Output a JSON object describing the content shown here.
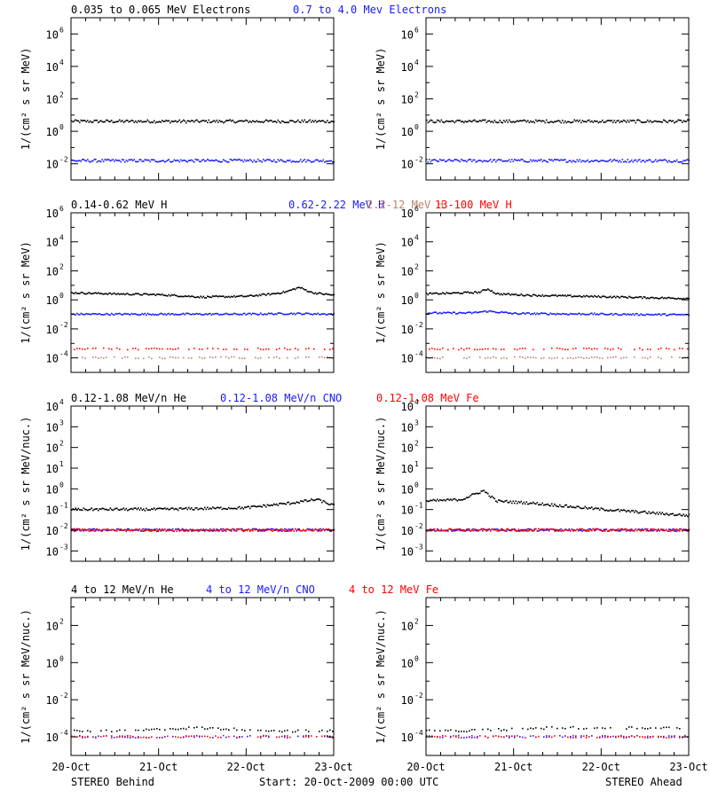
{
  "colors": {
    "black": "#000000",
    "blue": "#1a1aff",
    "tan": "#c08070",
    "red": "#ff0000"
  },
  "figure": {
    "footer_left": "STEREO Behind",
    "footer_center": "Start: 20-Oct-2009 00:00 UTC",
    "footer_right": "STEREO Ahead"
  },
  "chart_data": [
    {
      "type": "scatter",
      "panel": "electrons-behind",
      "column": "STEREO Behind",
      "title_segments": [
        {
          "text": "0.035 to 0.065 MeV Electrons",
          "color": "black"
        },
        {
          "text": "0.7 to 4.0 Mev Electrons",
          "color": "blue"
        }
      ],
      "ylabel": "1/(cm² s sr MeV)",
      "y_scale": "log",
      "ylim_exponent": [
        -3,
        7
      ],
      "y_tick_exponents": [
        -2,
        0,
        2,
        4,
        6
      ],
      "x_ticks": [
        "20-Oct",
        "21-Oct",
        "22-Oct",
        "23-Oct"
      ],
      "xlim_days": [
        0,
        3
      ],
      "series": [
        {
          "name": "0.035 to 0.065 MeV Electrons",
          "color": "black",
          "x_days": [
            0,
            0.5,
            1,
            1.5,
            2,
            2.5,
            3
          ],
          "y": [
            4,
            4,
            4,
            4,
            4,
            4,
            4
          ]
        },
        {
          "name": "0.7 to 4.0 Mev Electrons",
          "color": "blue",
          "x_days": [
            0,
            0.5,
            1,
            1.5,
            2,
            2.5,
            3
          ],
          "y": [
            0.015,
            0.015,
            0.015,
            0.015,
            0.015,
            0.015,
            0.015
          ]
        }
      ]
    },
    {
      "type": "scatter",
      "panel": "electrons-ahead",
      "column": "STEREO Ahead",
      "title_segments": [],
      "ylabel": "1/(cm² s sr MeV)",
      "y_scale": "log",
      "ylim_exponent": [
        -3,
        7
      ],
      "y_tick_exponents": [
        -2,
        0,
        2,
        4,
        6
      ],
      "x_ticks": [
        "20-Oct",
        "21-Oct",
        "22-Oct",
        "23-Oct"
      ],
      "xlim_days": [
        0,
        3
      ],
      "series": [
        {
          "name": "0.035 to 0.065 MeV Electrons",
          "color": "black",
          "x_days": [
            0,
            0.5,
            1,
            1.5,
            2,
            2.5,
            3
          ],
          "y": [
            4,
            4,
            4,
            4,
            4,
            4,
            4
          ]
        },
        {
          "name": "0.7 to 4.0 Mev Electrons",
          "color": "blue",
          "x_days": [
            0,
            0.5,
            1,
            1.5,
            2,
            2.5,
            3
          ],
          "y": [
            0.015,
            0.015,
            0.015,
            0.015,
            0.015,
            0.015,
            0.015
          ]
        }
      ]
    },
    {
      "type": "scatter",
      "panel": "protons-behind",
      "column": "STEREO Behind",
      "title_segments": [
        {
          "text": "0.14-0.62 MeV H",
          "color": "black"
        },
        {
          "text": "0.62-2.22 MeV H",
          "color": "blue"
        },
        {
          "text": "2.2-12 MeV H",
          "color": "tan"
        },
        {
          "text": "13-100 MeV H",
          "color": "red"
        }
      ],
      "ylabel": "1/(cm² s sr MeV)",
      "y_scale": "log",
      "ylim_exponent": [
        -5,
        6
      ],
      "y_tick_exponents": [
        -4,
        -2,
        0,
        2,
        4,
        6
      ],
      "x_ticks": [
        "20-Oct",
        "21-Oct",
        "22-Oct",
        "23-Oct"
      ],
      "xlim_days": [
        0,
        3
      ],
      "series": [
        {
          "name": "0.14-0.62 MeV H",
          "color": "black",
          "x_days": [
            0,
            0.5,
            1,
            1.5,
            2,
            2.3,
            2.45,
            2.6,
            2.75,
            3
          ],
          "y": [
            3,
            2.5,
            2.2,
            1.5,
            1.7,
            2.5,
            3.5,
            7,
            3,
            2
          ]
        },
        {
          "name": "0.62-2.22 MeV H",
          "color": "blue",
          "x_days": [
            0,
            0.5,
            1,
            1.5,
            2,
            2.5,
            3
          ],
          "y": [
            0.1,
            0.1,
            0.1,
            0.1,
            0.1,
            0.11,
            0.1
          ]
        },
        {
          "name": "2.2-12 MeV H",
          "color": "tan",
          "x_days": [
            0,
            1,
            2,
            3
          ],
          "y": [
            0.0001,
            0.0001,
            0.0001,
            0.0001
          ]
        },
        {
          "name": "13-100 MeV H",
          "color": "red",
          "x_days": [
            0,
            1,
            2,
            3
          ],
          "y": [
            0.0004,
            0.0004,
            0.0004,
            0.0004
          ]
        }
      ]
    },
    {
      "type": "scatter",
      "panel": "protons-ahead",
      "column": "STEREO Ahead",
      "title_segments": [],
      "ylabel": "1/(cm² s sr MeV)",
      "y_scale": "log",
      "ylim_exponent": [
        -5,
        6
      ],
      "y_tick_exponents": [
        -4,
        -2,
        0,
        2,
        4,
        6
      ],
      "x_ticks": [
        "20-Oct",
        "21-Oct",
        "22-Oct",
        "23-Oct"
      ],
      "xlim_days": [
        0,
        3
      ],
      "series": [
        {
          "name": "0.14-0.62 MeV H",
          "color": "black",
          "x_days": [
            0,
            0.3,
            0.6,
            0.7,
            0.8,
            1.2,
            2,
            3
          ],
          "y": [
            2.5,
            2.8,
            3.2,
            5.5,
            2.5,
            2,
            1.6,
            1.2
          ]
        },
        {
          "name": "0.62-2.22 MeV H",
          "color": "blue",
          "x_days": [
            0,
            0.5,
            0.7,
            1,
            2,
            3
          ],
          "y": [
            0.12,
            0.12,
            0.16,
            0.11,
            0.1,
            0.09
          ]
        },
        {
          "name": "2.2-12 MeV H",
          "color": "tan",
          "x_days": [
            0,
            1,
            2,
            3
          ],
          "y": [
            0.0001,
            0.0001,
            0.0001,
            0.0001
          ]
        },
        {
          "name": "13-100 MeV H",
          "color": "red",
          "x_days": [
            0,
            1,
            2,
            3
          ],
          "y": [
            0.0004,
            0.0004,
            0.0004,
            0.0004
          ]
        }
      ]
    },
    {
      "type": "scatter",
      "panel": "heavy-low-behind",
      "column": "STEREO Behind",
      "title_segments": [
        {
          "text": "0.12-1.08 MeV/n He",
          "color": "black"
        },
        {
          "text": "0.12-1.08 MeV/n CNO",
          "color": "blue"
        },
        {
          "text": "0.12-1.08 MeV Fe",
          "color": "red"
        }
      ],
      "ylabel": "1/(cm² s sr MeV/nuc.)",
      "y_scale": "log",
      "ylim_exponent": [
        -3.5,
        4
      ],
      "y_tick_exponents": [
        -3,
        -2,
        -1,
        0,
        1,
        2,
        3,
        4
      ],
      "x_ticks": [
        "20-Oct",
        "21-Oct",
        "22-Oct",
        "23-Oct"
      ],
      "xlim_days": [
        0,
        3
      ],
      "series": [
        {
          "name": "0.12-1.08 MeV/n He",
          "color": "black",
          "x_days": [
            0,
            1,
            2,
            2.5,
            2.8,
            3
          ],
          "y": [
            0.1,
            0.1,
            0.12,
            0.2,
            0.3,
            0.15
          ]
        },
        {
          "name": "0.12-1.08 MeV/n CNO",
          "color": "blue",
          "x_days": [
            0,
            1,
            2,
            3
          ],
          "y": [
            0.01,
            0.01,
            0.01,
            0.01
          ]
        },
        {
          "name": "0.12-1.08 MeV Fe",
          "color": "red",
          "x_days": [
            0,
            1,
            2,
            3
          ],
          "y": [
            0.01,
            0.01,
            0.01,
            0.01
          ]
        }
      ]
    },
    {
      "type": "scatter",
      "panel": "heavy-low-ahead",
      "column": "STEREO Ahead",
      "title_segments": [],
      "ylabel": "1/(cm² s sr MeV/nuc.)",
      "y_scale": "log",
      "ylim_exponent": [
        -3.5,
        4
      ],
      "y_tick_exponents": [
        -3,
        -2,
        -1,
        0,
        1,
        2,
        3,
        4
      ],
      "x_ticks": [
        "20-Oct",
        "21-Oct",
        "22-Oct",
        "23-Oct"
      ],
      "xlim_days": [
        0,
        3
      ],
      "series": [
        {
          "name": "0.12-1.08 MeV/n He",
          "color": "black",
          "x_days": [
            0,
            0.4,
            0.65,
            0.8,
            1.2,
            2,
            3
          ],
          "y": [
            0.25,
            0.3,
            0.8,
            0.25,
            0.2,
            0.1,
            0.05
          ]
        },
        {
          "name": "0.12-1.08 MeV/n CNO",
          "color": "blue",
          "x_days": [
            0,
            1,
            2,
            3
          ],
          "y": [
            0.01,
            0.01,
            0.01,
            0.01
          ]
        },
        {
          "name": "0.12-1.08 MeV Fe",
          "color": "red",
          "x_days": [
            0,
            1,
            2,
            3
          ],
          "y": [
            0.01,
            0.01,
            0.01,
            0.01
          ]
        }
      ]
    },
    {
      "type": "scatter",
      "panel": "heavy-high-behind",
      "column": "STEREO Behind",
      "title_segments": [
        {
          "text": "4 to 12 MeV/n He",
          "color": "black"
        },
        {
          "text": "4 to 12 MeV/n CNO",
          "color": "blue"
        },
        {
          "text": "4 to 12 MeV Fe",
          "color": "red"
        }
      ],
      "ylabel": "1/(cm² s sr MeV/nuc.)",
      "y_scale": "log",
      "ylim_exponent": [
        -5,
        3.5
      ],
      "y_tick_exponents": [
        -4,
        -2,
        0,
        2
      ],
      "x_ticks": [
        "20-Oct",
        "21-Oct",
        "22-Oct",
        "23-Oct"
      ],
      "xlim_days": [
        0,
        3
      ],
      "series": [
        {
          "name": "4 to 12 MeV/n He",
          "color": "black",
          "x_days": [
            0.1,
            0.6,
            1.4,
            2.5
          ],
          "y": [
            0.0002,
            0.0002,
            0.0003,
            0.0002
          ]
        },
        {
          "name": "4 to 12 MeV/n CNO",
          "color": "blue",
          "x_days": [
            0,
            1,
            2,
            3
          ],
          "y": [
            0.0001,
            0.0001,
            0.0001,
            0.0001
          ]
        },
        {
          "name": "4 to 12 MeV Fe",
          "color": "red",
          "x_days": [
            0,
            1,
            2,
            3
          ],
          "y": [
            0.0001,
            0.0001,
            0.0001,
            0.0001
          ]
        }
      ]
    },
    {
      "type": "scatter",
      "panel": "heavy-high-ahead",
      "column": "STEREO Ahead",
      "title_segments": [],
      "ylabel": "1/(cm² s sr MeV/nuc.)",
      "y_scale": "log",
      "ylim_exponent": [
        -5,
        3.5
      ],
      "y_tick_exponents": [
        -4,
        -2,
        0,
        2
      ],
      "x_ticks": [
        "20-Oct",
        "21-Oct",
        "22-Oct",
        "23-Oct"
      ],
      "xlim_days": [
        0,
        3
      ],
      "series": [
        {
          "name": "4 to 12 MeV/n He",
          "color": "black",
          "x_days": [
            0.3,
            1.45,
            2.05
          ],
          "y": [
            0.0002,
            0.0003,
            0.0003
          ]
        },
        {
          "name": "4 to 12 MeV/n CNO",
          "color": "blue",
          "x_days": [
            0,
            1,
            2,
            3
          ],
          "y": [
            0.0001,
            0.0001,
            0.0001,
            0.0001
          ]
        },
        {
          "name": "4 to 12 MeV Fe",
          "color": "red",
          "x_days": [
            0,
            1,
            2,
            3
          ],
          "y": [
            0.0001,
            0.0001,
            0.0001,
            0.0001
          ]
        }
      ]
    }
  ]
}
